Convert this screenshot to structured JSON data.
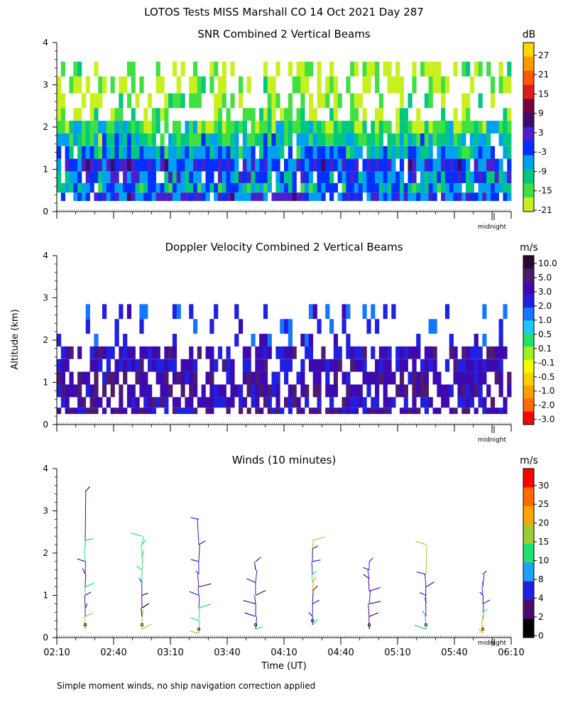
{
  "figure": {
    "title": "LOTOS Tests MISS Marshall CO  14 Oct 2021 Day 287",
    "shared_ylabel": "Altitude (km)",
    "shared_xlabel": "Time (UT)",
    "footnote": "Simple moment winds, no ship navigation correction applied",
    "x_ticks": [
      "02:10",
      "02:40",
      "03:10",
      "03:40",
      "04:10",
      "04:40",
      "05:10",
      "05:40",
      "06:10"
    ],
    "y_ticks": [
      "0",
      "1",
      "2",
      "3",
      "4"
    ],
    "marker_label": "midnight"
  },
  "chart_data": [
    {
      "type": "heatmap",
      "title": "SNR Combined 2 Vertical Beams",
      "xlabel": "Time (UT)",
      "ylabel": "Altitude (km)",
      "xlim": [
        "02:10",
        "06:10"
      ],
      "ylim": [
        0,
        4
      ],
      "colorbar": {
        "unit": "dB",
        "ticks": [
          "27",
          "21",
          "15",
          "9",
          "3",
          "-3",
          "-9",
          "-15",
          "-21"
        ],
        "colors": [
          "#ffd700",
          "#ff9900",
          "#ff5a00",
          "#e41a1a",
          "#7a0040",
          "#3d0a6e",
          "#4b1fcc",
          "#0030ff",
          "#00a0f0",
          "#00c880",
          "#40e040",
          "#c8f020"
        ]
      },
      "series": [
        {
          "name": "SNR dB",
          "altitudes_km": [
            0.35,
            0.55,
            0.8,
            1.1,
            1.4,
            1.7,
            2.0,
            2.3,
            2.6,
            3.0,
            3.4
          ],
          "mean_by_altitude": [
            -3,
            -9,
            -6,
            -3,
            -9,
            -12,
            -15,
            -18,
            -20,
            -21,
            -21
          ]
        }
      ],
      "grid": false
    },
    {
      "type": "heatmap",
      "title": "Doppler Velocity Combined 2 Vertical Beams",
      "xlabel": "Time (UT)",
      "ylabel": "Altitude (km)",
      "xlim": [
        "02:10",
        "06:10"
      ],
      "ylim": [
        0,
        4
      ],
      "colorbar": {
        "unit": "m/s",
        "ticks": [
          "10.0",
          "5.0",
          "3.0",
          "2.0",
          "1.0",
          "0.5",
          "0.1",
          "-0.1",
          "-0.5",
          "-1.0",
          "-2.0",
          "-3.0"
        ],
        "colors": [
          "#2a0a2a",
          "#4d1a6e",
          "#3d0ab0",
          "#2020e0",
          "#1478ff",
          "#1ec8ff",
          "#22e070",
          "#a0f020",
          "#f0ff00",
          "#ffd000",
          "#ffa000",
          "#ff6a00",
          "#ff0000"
        ]
      },
      "series": [
        {
          "name": "Doppler velocity m/s",
          "altitudes_km": [
            0.3,
            0.5,
            0.8,
            1.1,
            1.4,
            1.7,
            2.0,
            2.3,
            2.7
          ],
          "mean_by_altitude": [
            -1.0,
            -0.5,
            -1.0,
            -1.0,
            -0.5,
            -0.5,
            0.1,
            0.5,
            0.5
          ]
        }
      ],
      "grid": false
    },
    {
      "type": "scatter",
      "title": "Winds (10 minutes)",
      "xlabel": "Time (UT)",
      "ylabel": "Altitude (km)",
      "xlim": [
        "02:10",
        "06:10"
      ],
      "ylim": [
        0,
        4
      ],
      "colorbar": {
        "unit": "m/s",
        "ticks": [
          "30",
          "25",
          "20",
          "15",
          "10",
          "8",
          "4",
          "2",
          "0"
        ],
        "colors": [
          "#ff0000",
          "#ff6a00",
          "#ffa500",
          "#9acd32",
          "#22e070",
          "#1ea0ff",
          "#2020e0",
          "#4d0a6e",
          "#000000"
        ]
      },
      "profiles": [
        {
          "time": "02:25",
          "altitudes_km": [
            0.2,
            0.5,
            0.7,
            1.0,
            1.2,
            1.5,
            1.8,
            2.1,
            2.3,
            3.45
          ],
          "speeds_ms": [
            18,
            15,
            4,
            3,
            10,
            3,
            4,
            12,
            10,
            2
          ]
        },
        {
          "time": "02:55",
          "altitudes_km": [
            0.2,
            0.5,
            0.7,
            1.0,
            1.3,
            1.6,
            1.9,
            2.2,
            2.4
          ],
          "speeds_ms": [
            18,
            17,
            1,
            3,
            6,
            12,
            10,
            14,
            11
          ]
        },
        {
          "time": "03:25",
          "altitudes_km": [
            0.1,
            0.4,
            0.7,
            1.0,
            1.2,
            1.5,
            1.8,
            2.2,
            2.8
          ],
          "speeds_ms": [
            22,
            13,
            11,
            4,
            3,
            6,
            4,
            3,
            5
          ]
        },
        {
          "time": "03:55",
          "altitudes_km": [
            0.2,
            0.5,
            0.8,
            1.0,
            1.3,
            1.6,
            1.8
          ],
          "speeds_ms": [
            14,
            5,
            3,
            3,
            5,
            4,
            3
          ]
        },
        {
          "time": "04:25",
          "altitudes_km": [
            0.3,
            0.5,
            0.8,
            1.1,
            1.3,
            1.5,
            1.8,
            2.1,
            2.3
          ],
          "speeds_ms": [
            12,
            6,
            4,
            3,
            20,
            14,
            6,
            3,
            15
          ]
        },
        {
          "time": "04:55",
          "altitudes_km": [
            0.2,
            0.5,
            0.8,
            1.1,
            1.4,
            1.6,
            1.8
          ],
          "speeds_ms": [
            14,
            3,
            2,
            4,
            3,
            6,
            4
          ]
        },
        {
          "time": "05:25",
          "altitudes_km": [
            0.2,
            0.5,
            0.8,
            1.0,
            1.2,
            1.5,
            2.2
          ],
          "speeds_ms": [
            14,
            8,
            3,
            4,
            3,
            5,
            15
          ]
        },
        {
          "time": "05:55",
          "altitudes_km": [
            0.1,
            0.4,
            0.6,
            0.8,
            1.0,
            1.2,
            1.5
          ],
          "speeds_ms": [
            24,
            20,
            12,
            4,
            3,
            5,
            4
          ]
        }
      ],
      "grid": false
    }
  ]
}
